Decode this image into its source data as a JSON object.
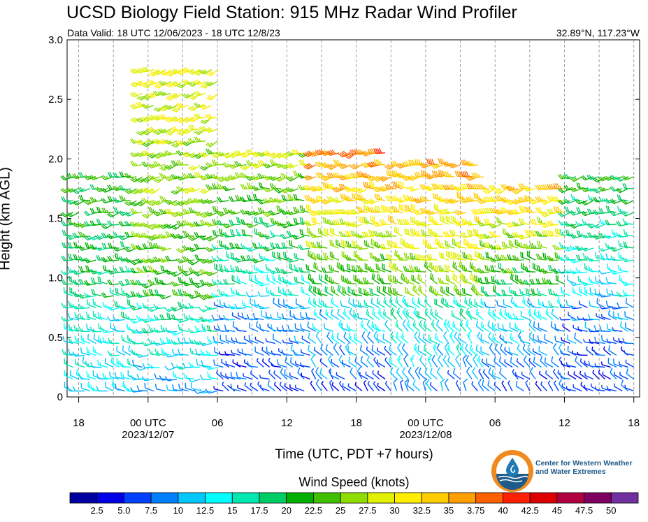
{
  "title": "UCSD Biology Field Station: 915 MHz Radar Wind Profiler",
  "subtitle_left": "Data Valid: 18 UTC 12/06/2023 - 18 UTC 12/8/23",
  "subtitle_right": "32.89°N, 117.23°W",
  "logo_text_line1": "Center for Western Weather",
  "logo_text_line2": "and Water Extremes",
  "chart_data": {
    "type": "wind barbs",
    "title": "UCSD Biology Field Station: 915 MHz Radar Wind Profiler",
    "xlabel": "Time (UTC, PDT +7 hours)",
    "ylabel": "Height (km AGL)",
    "ylim": [
      0,
      3.0
    ],
    "y_ticks": [
      "0",
      "0.5",
      "1.0",
      "1.5",
      "2.0",
      "2.5",
      "3.0"
    ],
    "x_ticks": [
      {
        "line1": "18",
        "line2": ""
      },
      {
        "line1": "00 UTC",
        "line2": "2023/12/07"
      },
      {
        "line1": "06",
        "line2": ""
      },
      {
        "line1": "12",
        "line2": ""
      },
      {
        "line1": "18",
        "line2": ""
      },
      {
        "line1": "00 UTC",
        "line2": "2023/12/08"
      },
      {
        "line1": "06",
        "line2": ""
      },
      {
        "line1": "12",
        "line2": ""
      },
      {
        "line1": "18",
        "line2": ""
      }
    ],
    "x_tick_hours": [
      0,
      6,
      12,
      18,
      24,
      30,
      36,
      42,
      48
    ],
    "xlim_hours": [
      -1,
      48.5
    ],
    "grid": "vertical dashed every 3 hours",
    "colorbar_title": "Wind Speed (knots)",
    "colorbar_labels": [
      "2.5",
      "5.0",
      "7.5",
      "10",
      "12.5",
      "15",
      "17.5",
      "20",
      "22.5",
      "25",
      "27.5",
      "30",
      "32.5",
      "35",
      "3.75",
      "40",
      "42.5",
      "45",
      "47.5",
      "50"
    ],
    "colorbar_colors": [
      "#0000a0",
      "#0000e6",
      "#0040ff",
      "#0080ff",
      "#00c8ff",
      "#00ffff",
      "#00e8b0",
      "#00cc66",
      "#00b000",
      "#40c000",
      "#90dd00",
      "#e0f000",
      "#ffee00",
      "#ffcc00",
      "#ffa000",
      "#ff6000",
      "#ff2000",
      "#dd0000",
      "#b00040",
      "#800060",
      "#7030a0"
    ],
    "profile_groups": [
      {
        "t": [
          -1,
          5
        ],
        "low_speed": 12,
        "mid_speed": 18,
        "upper_speed": 22,
        "top_km": 1.9,
        "low_dir": 290,
        "up_dir": 250
      },
      {
        "t": [
          5.5,
          12
        ],
        "low_speed": 10,
        "mid_speed": 22,
        "upper_speed": 30,
        "top_km": 2.8,
        "low_dir": 270,
        "up_dir": 240
      },
      {
        "t": [
          12.5,
          20
        ],
        "low_speed": 5,
        "mid_speed": 14,
        "upper_speed": 28,
        "top_km": 2.1,
        "low_dir": 300,
        "up_dir": 250
      },
      {
        "t": [
          20.5,
          27
        ],
        "low_speed": 6,
        "mid_speed": 20,
        "upper_speed": 38,
        "top_km": 2.1,
        "low_dir": 320,
        "up_dir": 250
      },
      {
        "t": [
          27.5,
          35
        ],
        "low_speed": 8,
        "mid_speed": 24,
        "upper_speed": 37,
        "top_km": 2.05,
        "low_dir": 330,
        "up_dir": 255
      },
      {
        "t": [
          35.5,
          42
        ],
        "low_speed": 6,
        "mid_speed": 18,
        "upper_speed": 36,
        "top_km": 1.85,
        "low_dir": 320,
        "up_dir": 250
      },
      {
        "t": [
          42.5,
          48.5
        ],
        "low_speed": 5,
        "mid_speed": 12,
        "upper_speed": 22,
        "top_km": 1.95,
        "low_dir": 300,
        "up_dir": 250
      }
    ]
  }
}
